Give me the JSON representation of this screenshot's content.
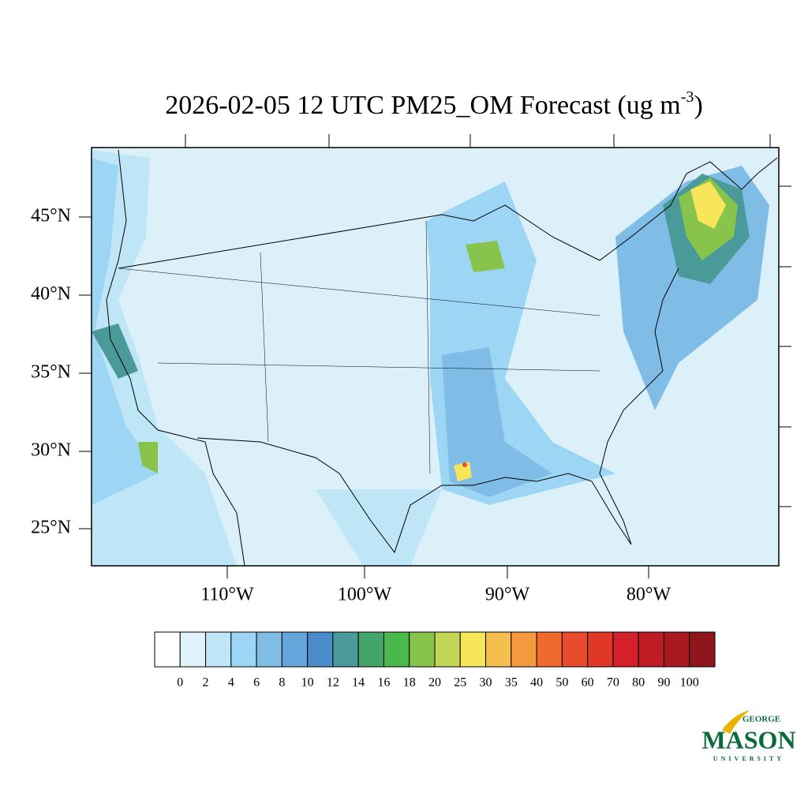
{
  "title": {
    "main": "2026-02-05 12 UTC PM25_OM Forecast (ug m",
    "sup": "-3",
    "end": ")"
  },
  "lat_labels": [
    "45°N",
    "40°N",
    "35°N",
    "30°N",
    "25°N"
  ],
  "lon_labels": [
    "110°W",
    "100°W",
    "90°W",
    "80°W"
  ],
  "colorbar": {
    "levels": [
      0,
      2,
      4,
      6,
      8,
      10,
      12,
      14,
      16,
      18,
      20,
      25,
      30,
      35,
      40,
      50,
      60,
      70,
      80,
      90,
      100
    ],
    "colors": [
      "#ffffff",
      "#e0f3fb",
      "#bfe6f7",
      "#9dd6f4",
      "#7fbde6",
      "#64a6dc",
      "#4a8bca",
      "#4a9a9a",
      "#44a56a",
      "#4ab84a",
      "#88c44c",
      "#c4d655",
      "#f7e65a",
      "#f6be4c",
      "#f59a3c",
      "#f06a2e",
      "#e84c2c",
      "#df3827",
      "#d42028",
      "#c01c24",
      "#a91a1f",
      "#8e1519"
    ]
  },
  "logo": {
    "top": "GEORGE",
    "name": "MASON",
    "bottom": "UNIVERSITY"
  }
}
